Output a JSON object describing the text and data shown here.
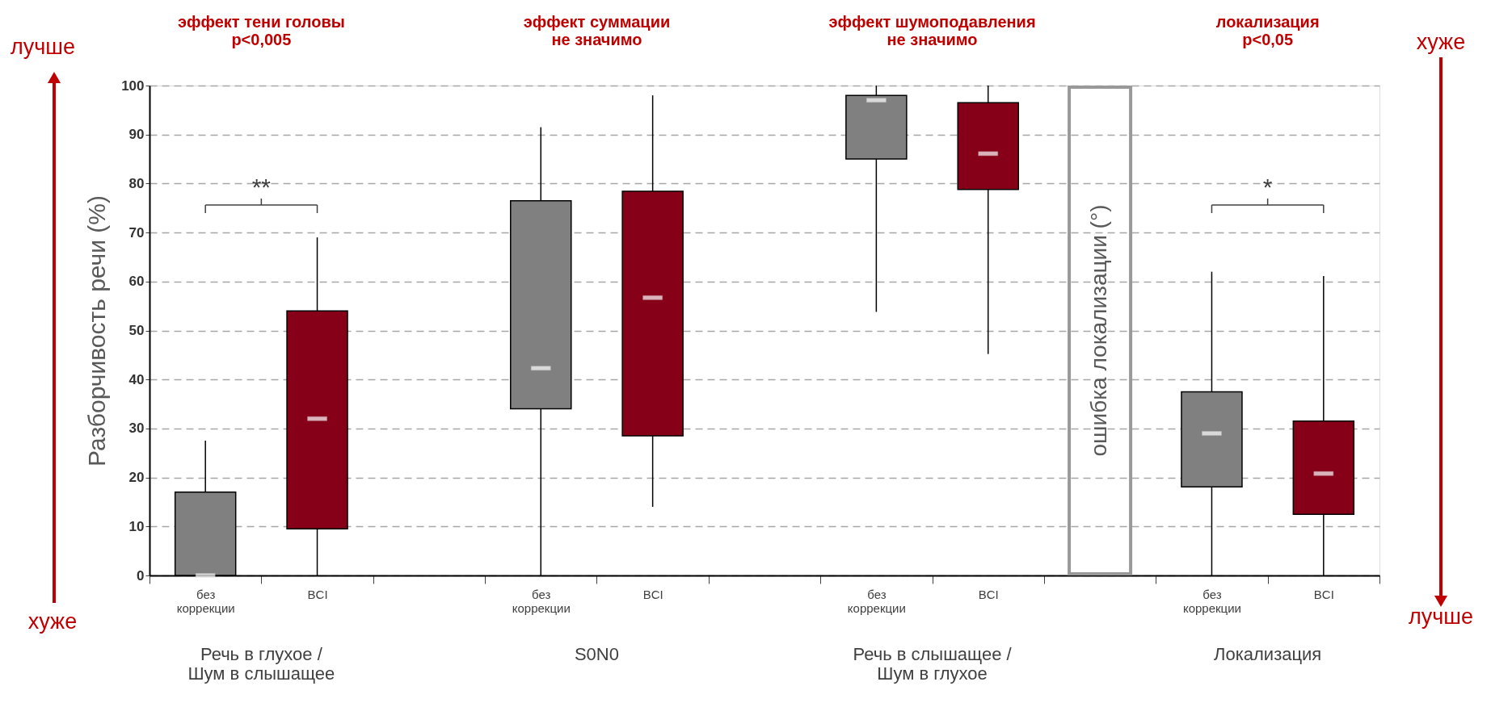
{
  "chart_data": {
    "type": "box",
    "ylabel": "Разборчивость речи (%)",
    "categories": [
      "без коррекции",
      "BCI",
      null,
      "без коррекции",
      "BCI",
      null,
      "без коррекции",
      "BCI",
      null,
      "без коррекции",
      "BCI"
    ],
    "boxes": [
      {
        "low": 0,
        "q1": 0,
        "median": 0,
        "q3": 17,
        "high": 27.5
      },
      {
        "low": 0,
        "q1": 9.5,
        "median": 32,
        "q3": 54,
        "high": 69
      },
      null,
      {
        "low": 0,
        "q1": 34,
        "median": 42.3,
        "q3": 76.5,
        "high": 91.5
      },
      {
        "low": 14,
        "q1": 28.5,
        "median": 56.7,
        "q3": 78.4,
        "high": 98
      },
      null,
      {
        "low": 53.8,
        "q1": 85,
        "median": 97,
        "q3": 98,
        "high": 100
      },
      {
        "low": 45.2,
        "q1": 78.8,
        "median": 86.1,
        "q3": 96.5,
        "high": 100
      },
      null,
      {
        "low": 0,
        "q1": 18.1,
        "median": 29,
        "q3": 37.5,
        "high": 62
      },
      {
        "low": 0,
        "q1": 12.5,
        "median": 20.8,
        "q3": 31.5,
        "high": 61.1
      }
    ],
    "colors": [
      "#808080",
      "#860018",
      null,
      "#808080",
      "#860018",
      null,
      "#808080",
      "#860018",
      null,
      "#808080",
      "#860018"
    ],
    "ylim": [
      0,
      100
    ],
    "yticks": [
      0,
      10,
      20,
      30,
      40,
      50,
      60,
      70,
      80,
      90,
      100
    ],
    "grid": "y",
    "annotations": [
      "эффект тени головы\np<0,005",
      "эффект суммации\nне значимо",
      "эффект шумоподавления\nне значимо",
      "локализация\np<0,05",
      "Речь в глухое /\nШум в слышащее",
      "S0N0",
      "Речь в слышащее /\nШум в глухое",
      "Локализация",
      "ошибка локализации (°)",
      "**",
      "*",
      "лучше",
      "хуже",
      "хуже",
      "лучше"
    ]
  }
}
